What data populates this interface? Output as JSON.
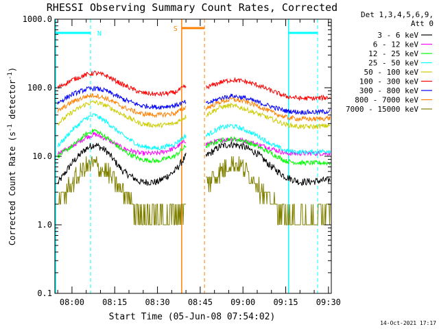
{
  "chart_data": {
    "type": "line",
    "title": "RHESSI Observing Summary Count Rates, Corrected",
    "xlabel": "Start Time (05-Jun-08 07:54:02)",
    "ylabel_main": "Corrected Count Rate (s",
    "ylabel_sup1": "-1",
    "ylabel_mid": " detector",
    "ylabel_sup2": "-1",
    "ylabel_end": ")",
    "yscale": "log",
    "xlim": [
      "07:54",
      "09:31"
    ],
    "ylim": [
      0.1,
      1000
    ],
    "x_ticks": [
      "08:00",
      "08:15",
      "08:30",
      "08:45",
      "09:00",
      "09:15",
      "09:30"
    ],
    "y_ticks": [
      "0.1",
      "1.0",
      "10.0",
      "100.0",
      "1000.0"
    ],
    "legend_header": [
      "Det 1,3,4,5,6,9,",
      "Att 0"
    ],
    "legend_position": "top-right",
    "timestamp": "14-Oct-2021 17:17",
    "annotations": [
      {
        "label": "N",
        "color": "#00ffff"
      },
      {
        "label": "S",
        "color": "#ff8000"
      }
    ],
    "data_gap": [
      "08:40",
      "08:47"
    ],
    "series": [
      {
        "name": "3 - 6 keV",
        "color": "#000000",
        "x": [
          "07:55",
          "08:00",
          "08:05",
          "08:08",
          "08:12",
          "08:18",
          "08:24",
          "08:30",
          "08:36",
          "08:40",
          "08:47",
          "08:52",
          "08:56",
          "09:00",
          "09:05",
          "09:10",
          "09:15",
          "09:20",
          "09:25",
          "09:30"
        ],
        "values": [
          4,
          8,
          13,
          15,
          12,
          6,
          4.2,
          4.2,
          6,
          10,
          10,
          14,
          15,
          14,
          11,
          7,
          5,
          4.2,
          4.3,
          4.5
        ]
      },
      {
        "name": "6 - 12 keV",
        "color": "#ff00ff",
        "x": [
          "07:55",
          "08:00",
          "08:05",
          "08:08",
          "08:12",
          "08:18",
          "08:24",
          "08:30",
          "08:36",
          "08:40",
          "08:47",
          "08:52",
          "08:56",
          "09:00",
          "09:05",
          "09:10",
          "09:15",
          "09:20",
          "09:25",
          "09:30"
        ],
        "values": [
          11,
          14,
          19,
          21,
          18,
          13,
          11,
          11,
          13,
          17,
          15,
          17,
          18,
          17,
          15,
          13,
          11,
          11,
          11,
          11
        ]
      },
      {
        "name": "12 - 25 keV",
        "color": "#00ff00",
        "x": [
          "07:55",
          "08:00",
          "08:05",
          "08:08",
          "08:12",
          "08:18",
          "08:24",
          "08:30",
          "08:36",
          "08:40",
          "08:47",
          "08:52",
          "08:56",
          "09:00",
          "09:05",
          "09:10",
          "09:15",
          "09:20",
          "09:25",
          "09:30"
        ],
        "values": [
          10,
          14,
          21,
          24,
          19,
          12,
          9,
          8.5,
          10,
          14,
          14,
          17,
          18,
          17,
          14,
          11,
          8.5,
          8,
          8,
          8
        ]
      },
      {
        "name": "25 - 50 keV",
        "color": "#00ffff",
        "x": [
          "07:55",
          "08:00",
          "08:05",
          "08:08",
          "08:12",
          "08:18",
          "08:24",
          "08:30",
          "08:36",
          "08:40",
          "08:47",
          "08:52",
          "08:56",
          "09:00",
          "09:05",
          "09:10",
          "09:15",
          "09:20",
          "09:25",
          "09:30"
        ],
        "values": [
          14,
          24,
          36,
          40,
          32,
          20,
          14,
          13,
          15,
          20,
          20,
          26,
          28,
          25,
          20,
          15,
          12,
          11.5,
          11.5,
          12
        ]
      },
      {
        "name": "50 - 100 keV",
        "color": "#cccc00",
        "x": [
          "07:55",
          "08:00",
          "08:05",
          "08:08",
          "08:12",
          "08:18",
          "08:24",
          "08:30",
          "08:36",
          "08:40",
          "08:47",
          "08:52",
          "08:56",
          "09:00",
          "09:05",
          "09:10",
          "09:15",
          "09:20",
          "09:25",
          "09:30"
        ],
        "values": [
          30,
          44,
          58,
          62,
          55,
          40,
          30,
          28,
          30,
          38,
          40,
          52,
          55,
          50,
          42,
          35,
          29,
          27,
          27,
          28
        ]
      },
      {
        "name": "100 - 300 keV",
        "color": "#ff0000",
        "x": [
          "07:55",
          "08:00",
          "08:05",
          "08:08",
          "08:12",
          "08:18",
          "08:24",
          "08:30",
          "08:36",
          "08:40",
          "08:47",
          "08:52",
          "08:56",
          "09:00",
          "09:05",
          "09:10",
          "09:15",
          "09:20",
          "09:25",
          "09:30"
        ],
        "values": [
          100,
          130,
          155,
          165,
          150,
          110,
          85,
          80,
          85,
          105,
          100,
          120,
          130,
          125,
          110,
          90,
          75,
          70,
          70,
          72
        ]
      },
      {
        "name": "300 - 800 keV",
        "color": "#0000ff",
        "x": [
          "07:55",
          "08:00",
          "08:05",
          "08:08",
          "08:12",
          "08:18",
          "08:24",
          "08:30",
          "08:36",
          "08:40",
          "08:47",
          "08:52",
          "08:56",
          "09:00",
          "09:05",
          "09:10",
          "09:15",
          "09:20",
          "09:25",
          "09:30"
        ],
        "values": [
          60,
          80,
          95,
          98,
          90,
          68,
          55,
          52,
          55,
          62,
          58,
          70,
          76,
          72,
          62,
          53,
          46,
          44,
          44,
          45
        ]
      },
      {
        "name": "800 - 7000 keV",
        "color": "#ff8000",
        "x": [
          "07:55",
          "08:00",
          "08:05",
          "08:08",
          "08:12",
          "08:18",
          "08:24",
          "08:30",
          "08:36",
          "08:40",
          "08:47",
          "08:52",
          "08:56",
          "09:00",
          "09:05",
          "09:10",
          "09:15",
          "09:20",
          "09:25",
          "09:30"
        ],
        "values": [
          45,
          62,
          75,
          78,
          70,
          52,
          42,
          40,
          42,
          52,
          50,
          62,
          68,
          64,
          55,
          44,
          37,
          35,
          35,
          36
        ]
      },
      {
        "name": "7000 - 15000 keV",
        "color": "#808000",
        "x": [
          "07:55",
          "08:00",
          "08:05",
          "08:08",
          "08:12",
          "08:18",
          "08:24",
          "08:30",
          "08:36",
          "08:40",
          "08:47",
          "08:52",
          "08:56",
          "09:00",
          "09:05",
          "09:10",
          "09:15",
          "09:20",
          "09:25",
          "09:30"
        ],
        "values": [
          2,
          4,
          7,
          7.5,
          6,
          3,
          1.5,
          1.3,
          1.5,
          2,
          4,
          6,
          8,
          7,
          4,
          2,
          1.3,
          1.2,
          1.3,
          1.5
        ]
      }
    ]
  }
}
